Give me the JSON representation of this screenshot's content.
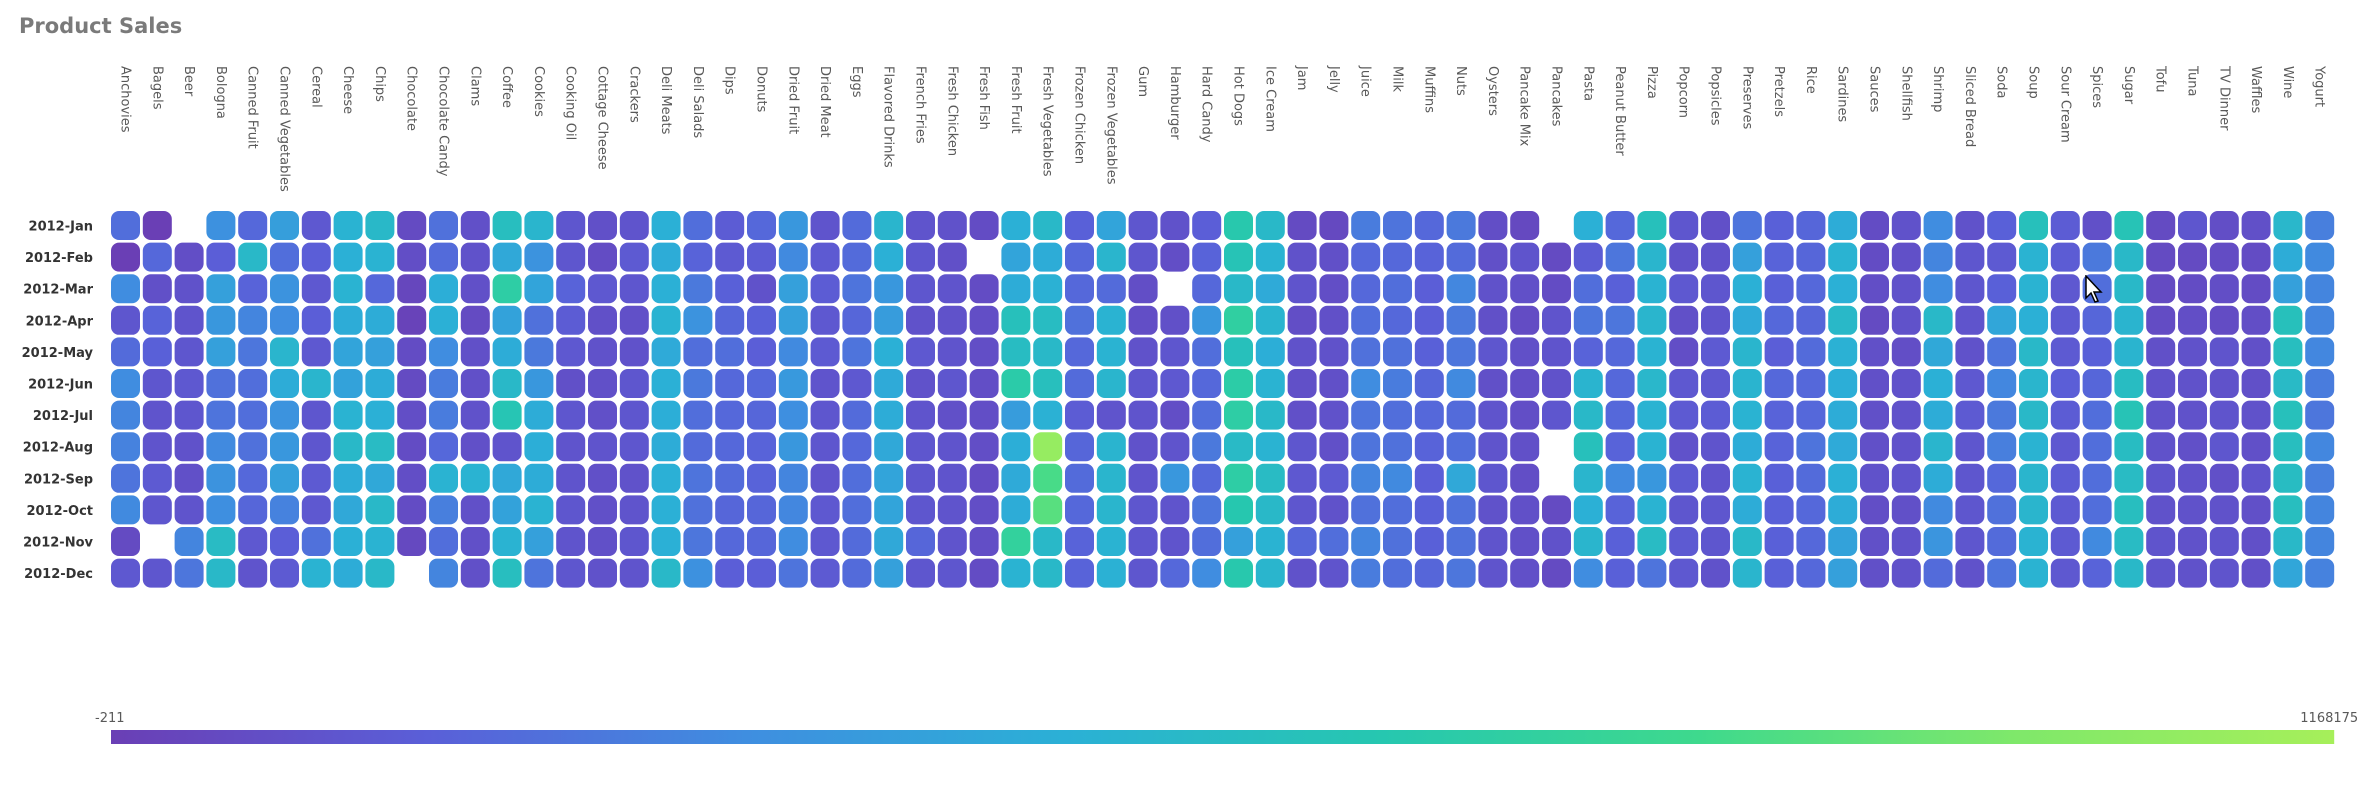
{
  "chart_data": {
    "type": "heatmap",
    "title": "Product Sales",
    "x_categories": [
      "Anchovies",
      "Bagels",
      "Beer",
      "Bologna",
      "Canned Fruit",
      "Canned Vegetables",
      "Cereal",
      "Cheese",
      "Chips",
      "Chocolate",
      "Chocolate Candy",
      "Clams",
      "Coffee",
      "Cookies",
      "Cooking Oil",
      "Cottage Cheese",
      "Crackers",
      "Deli Meats",
      "Deli Salads",
      "Dips",
      "Donuts",
      "Dried Fruit",
      "Dried Meat",
      "Eggs",
      "Flavored Drinks",
      "French Fries",
      "Fresh Chicken",
      "Fresh Fish",
      "Fresh Fruit",
      "Fresh Vegetables",
      "Frozen Chicken",
      "Frozen Vegetables",
      "Gum",
      "Hamburger",
      "Hard Candy",
      "Hot Dogs",
      "Ice Cream",
      "Jam",
      "Jelly",
      "Juice",
      "Milk",
      "Muffins",
      "Nuts",
      "Oysters",
      "Pancake Mix",
      "Pancakes",
      "Pasta",
      "Peanut Butter",
      "Pizza",
      "Popcorn",
      "Popsicles",
      "Preserves",
      "Pretzels",
      "Rice",
      "Sardines",
      "Sauces",
      "Shellfish",
      "Shrimp",
      "Sliced Bread",
      "Soda",
      "Soup",
      "Sour Cream",
      "Spices",
      "Sugar",
      "Tofu",
      "Tuna",
      "TV Dinner",
      "Waffles",
      "Wine",
      "Yogurt"
    ],
    "y_categories": [
      "2012-Jan",
      "2012-Feb",
      "2012-Mar",
      "2012-Apr",
      "2012-May",
      "2012-Jun",
      "2012-Jul",
      "2012-Aug",
      "2012-Sep",
      "2012-Oct",
      "2012-Nov",
      "2012-Dec"
    ],
    "color_range": {
      "min": -211,
      "max": 1168175,
      "min_label": "-211",
      "max_label": "1168175"
    },
    "colorscale": [
      "#6a3fb5",
      "#5a5fd8",
      "#3f8ee0",
      "#2bb0d6",
      "#26c7b0",
      "#3ed98d",
      "#7fe86a",
      "#a6ef5a"
    ],
    "value_scale_note": "values in sales units; null = no data",
    "values": [
      [
        220000,
        0,
        null,
        350000,
        200000,
        410000,
        130000,
        520000,
        560000,
        60000,
        230000,
        90000,
        600000,
        540000,
        120000,
        90000,
        110000,
        500000,
        220000,
        150000,
        200000,
        380000,
        110000,
        210000,
        540000,
        110000,
        100000,
        70000,
        500000,
        560000,
        170000,
        440000,
        120000,
        100000,
        160000,
        680000,
        560000,
        60000,
        50000,
        270000,
        240000,
        200000,
        260000,
        80000,
        50000,
        null,
        500000,
        200000,
        620000,
        120000,
        90000,
        240000,
        170000,
        190000,
        480000,
        70000,
        100000,
        330000,
        100000,
        170000,
        620000,
        150000,
        90000,
        640000,
        60000,
        120000,
        80000,
        90000,
        550000,
        280000
      ],
      [
        0,
        200000,
        80000,
        160000,
        560000,
        220000,
        160000,
        500000,
        520000,
        80000,
        210000,
        100000,
        460000,
        360000,
        120000,
        70000,
        140000,
        480000,
        180000,
        140000,
        150000,
        320000,
        140000,
        210000,
        500000,
        120000,
        90000,
        null,
        440000,
        480000,
        200000,
        540000,
        120000,
        80000,
        180000,
        640000,
        520000,
        100000,
        90000,
        200000,
        200000,
        180000,
        210000,
        90000,
        110000,
        60000,
        150000,
        250000,
        540000,
        100000,
        100000,
        420000,
        180000,
        190000,
        520000,
        70000,
        90000,
        300000,
        120000,
        140000,
        520000,
        150000,
        260000,
        560000,
        60000,
        60000,
        70000,
        70000,
        480000,
        320000
      ],
      [
        330000,
        90000,
        100000,
        420000,
        180000,
        360000,
        130000,
        520000,
        200000,
        40000,
        490000,
        90000,
        720000,
        440000,
        180000,
        130000,
        120000,
        500000,
        260000,
        170000,
        100000,
        420000,
        150000,
        240000,
        380000,
        120000,
        110000,
        70000,
        480000,
        510000,
        200000,
        210000,
        80000,
        null,
        200000,
        560000,
        470000,
        110000,
        80000,
        200000,
        220000,
        160000,
        310000,
        100000,
        90000,
        70000,
        220000,
        170000,
        520000,
        130000,
        120000,
        500000,
        170000,
        200000,
        500000,
        80000,
        100000,
        330000,
        120000,
        170000,
        520000,
        130000,
        220000,
        560000,
        60000,
        70000,
        80000,
        70000,
        420000,
        300000
      ],
      [
        120000,
        180000,
        110000,
        380000,
        300000,
        330000,
        160000,
        480000,
        480000,
        20000,
        500000,
        60000,
        430000,
        230000,
        150000,
        90000,
        90000,
        520000,
        360000,
        190000,
        170000,
        420000,
        130000,
        190000,
        400000,
        100000,
        100000,
        80000,
        620000,
        590000,
        230000,
        520000,
        80000,
        90000,
        380000,
        740000,
        530000,
        80000,
        90000,
        220000,
        200000,
        160000,
        260000,
        90000,
        70000,
        110000,
        250000,
        250000,
        540000,
        90000,
        110000,
        470000,
        200000,
        190000,
        560000,
        60000,
        100000,
        560000,
        110000,
        450000,
        500000,
        140000,
        190000,
        530000,
        70000,
        80000,
        70000,
        80000,
        620000,
        300000
      ],
      [
        210000,
        170000,
        120000,
        420000,
        250000,
        540000,
        130000,
        440000,
        420000,
        70000,
        330000,
        90000,
        480000,
        260000,
        130000,
        100000,
        100000,
        470000,
        220000,
        220000,
        160000,
        320000,
        140000,
        240000,
        500000,
        130000,
        110000,
        80000,
        590000,
        560000,
        200000,
        520000,
        100000,
        120000,
        220000,
        620000,
        490000,
        100000,
        100000,
        230000,
        230000,
        170000,
        250000,
        120000,
        90000,
        110000,
        180000,
        200000,
        520000,
        80000,
        140000,
        540000,
        160000,
        210000,
        510000,
        90000,
        80000,
        460000,
        100000,
        240000,
        560000,
        140000,
        170000,
        530000,
        90000,
        100000,
        110000,
        90000,
        600000,
        310000
      ],
      [
        330000,
        120000,
        130000,
        230000,
        220000,
        480000,
        540000,
        430000,
        480000,
        60000,
        270000,
        90000,
        560000,
        380000,
        90000,
        90000,
        120000,
        500000,
        260000,
        200000,
        200000,
        390000,
        110000,
        130000,
        470000,
        100000,
        120000,
        80000,
        700000,
        610000,
        210000,
        540000,
        120000,
        130000,
        200000,
        710000,
        520000,
        90000,
        90000,
        330000,
        270000,
        190000,
        320000,
        90000,
        80000,
        100000,
        530000,
        200000,
        550000,
        130000,
        130000,
        530000,
        200000,
        200000,
        490000,
        90000,
        100000,
        500000,
        130000,
        310000,
        540000,
        160000,
        190000,
        590000,
        100000,
        100000,
        100000,
        90000,
        570000,
        270000
      ],
      [
        300000,
        110000,
        120000,
        240000,
        220000,
        360000,
        120000,
        520000,
        500000,
        80000,
        270000,
        100000,
        650000,
        480000,
        120000,
        90000,
        120000,
        490000,
        220000,
        200000,
        190000,
        340000,
        120000,
        210000,
        480000,
        110000,
        90000,
        80000,
        400000,
        510000,
        150000,
        110000,
        110000,
        80000,
        220000,
        720000,
        560000,
        90000,
        100000,
        240000,
        220000,
        200000,
        210000,
        110000,
        80000,
        120000,
        560000,
        200000,
        520000,
        140000,
        150000,
        520000,
        180000,
        200000,
        480000,
        90000,
        100000,
        480000,
        140000,
        260000,
        560000,
        150000,
        220000,
        640000,
        100000,
        100000,
        110000,
        100000,
        620000,
        250000
      ],
      [
        290000,
        110000,
        100000,
        320000,
        230000,
        380000,
        120000,
        560000,
        580000,
        70000,
        200000,
        90000,
        110000,
        490000,
        110000,
        110000,
        120000,
        480000,
        210000,
        200000,
        180000,
        380000,
        120000,
        200000,
        460000,
        120000,
        110000,
        80000,
        490000,
        1100000,
        190000,
        530000,
        100000,
        110000,
        260000,
        570000,
        520000,
        120000,
        90000,
        240000,
        230000,
        180000,
        220000,
        110000,
        90000,
        null,
        620000,
        180000,
        520000,
        100000,
        110000,
        480000,
        180000,
        240000,
        470000,
        90000,
        100000,
        540000,
        120000,
        280000,
        520000,
        130000,
        220000,
        590000,
        100000,
        90000,
        120000,
        90000,
        600000,
        310000
      ],
      [
        240000,
        140000,
        90000,
        360000,
        200000,
        420000,
        140000,
        480000,
        460000,
        80000,
        520000,
        520000,
        460000,
        480000,
        110000,
        90000,
        100000,
        500000,
        240000,
        210000,
        180000,
        300000,
        110000,
        220000,
        440000,
        120000,
        110000,
        70000,
        470000,
        860000,
        210000,
        540000,
        110000,
        380000,
        200000,
        720000,
        580000,
        130000,
        140000,
        300000,
        320000,
        160000,
        460000,
        120000,
        80000,
        null,
        540000,
        320000,
        380000,
        140000,
        110000,
        520000,
        170000,
        210000,
        500000,
        100000,
        110000,
        480000,
        120000,
        200000,
        540000,
        150000,
        220000,
        580000,
        110000,
        100000,
        90000,
        110000,
        590000,
        280000
      ],
      [
        320000,
        120000,
        110000,
        340000,
        190000,
        290000,
        130000,
        460000,
        560000,
        70000,
        280000,
        90000,
        430000,
        520000,
        120000,
        90000,
        110000,
        500000,
        230000,
        190000,
        190000,
        310000,
        130000,
        220000,
        440000,
        120000,
        110000,
        80000,
        480000,
        900000,
        200000,
        540000,
        120000,
        110000,
        250000,
        670000,
        560000,
        120000,
        100000,
        230000,
        220000,
        170000,
        230000,
        100000,
        90000,
        60000,
        500000,
        180000,
        520000,
        120000,
        120000,
        480000,
        170000,
        200000,
        480000,
        80000,
        90000,
        320000,
        120000,
        230000,
        540000,
        140000,
        220000,
        600000,
        100000,
        100000,
        100000,
        90000,
        600000,
        300000
      ],
      [
        60000,
        null,
        300000,
        580000,
        130000,
        160000,
        230000,
        500000,
        520000,
        50000,
        220000,
        90000,
        520000,
        420000,
        110000,
        90000,
        120000,
        500000,
        250000,
        200000,
        190000,
        330000,
        130000,
        210000,
        460000,
        190000,
        110000,
        80000,
        760000,
        560000,
        180000,
        520000,
        120000,
        110000,
        220000,
        420000,
        520000,
        190000,
        220000,
        300000,
        230000,
        170000,
        230000,
        110000,
        90000,
        100000,
        540000,
        170000,
        580000,
        140000,
        120000,
        560000,
        170000,
        200000,
        430000,
        90000,
        100000,
        370000,
        120000,
        210000,
        520000,
        140000,
        320000,
        580000,
        110000,
        100000,
        110000,
        90000,
        560000,
        300000
      ],
      [
        130000,
        120000,
        250000,
        560000,
        110000,
        140000,
        520000,
        480000,
        560000,
        null,
        300000,
        90000,
        600000,
        240000,
        120000,
        100000,
        110000,
        560000,
        350000,
        160000,
        160000,
        240000,
        140000,
        210000,
        420000,
        120000,
        120000,
        70000,
        520000,
        560000,
        180000,
        510000,
        120000,
        200000,
        330000,
        680000,
        540000,
        100000,
        110000,
        270000,
        220000,
        190000,
        250000,
        110000,
        90000,
        60000,
        330000,
        170000,
        240000,
        130000,
        100000,
        540000,
        170000,
        200000,
        420000,
        90000,
        100000,
        210000,
        100000,
        240000,
        520000,
        130000,
        180000,
        560000,
        110000,
        100000,
        110000,
        90000,
        450000,
        290000
      ]
    ]
  }
}
